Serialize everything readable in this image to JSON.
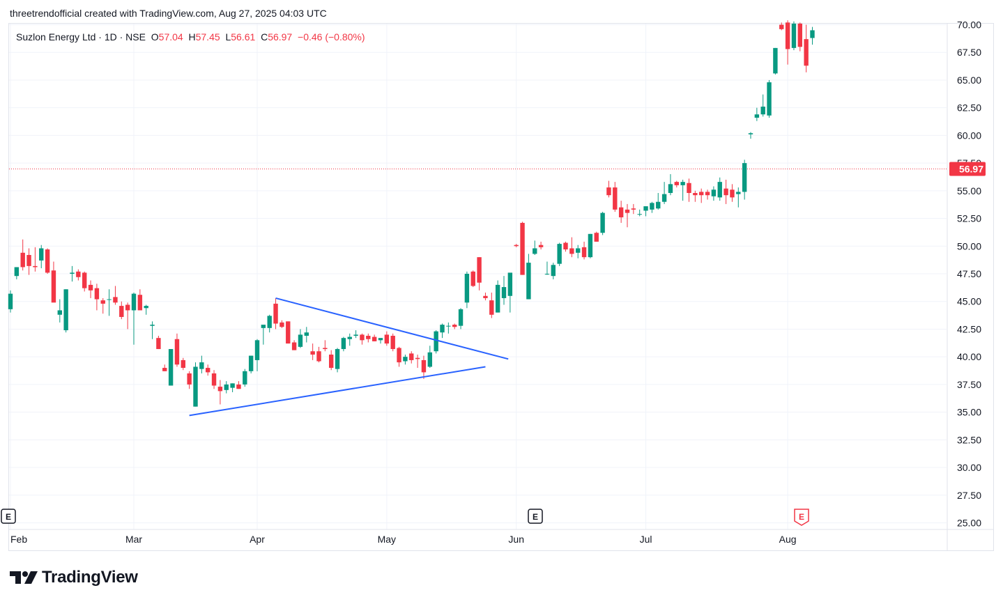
{
  "header": {
    "credit": "threetrendofficial created with TradingView.com, Aug 27, 2025 04:03 UTC"
  },
  "legend": {
    "symbol": "Suzlon Energy Ltd · 1D · NSE",
    "o_label": "O",
    "o_value": "57.04",
    "h_label": "H",
    "h_value": "57.45",
    "l_label": "L",
    "l_value": "56.61",
    "c_label": "C",
    "c_value": "56.97",
    "change": "−0.46 (−0.80%)"
  },
  "price_tag": "56.97",
  "earnings_marker": "E",
  "logo_text": "TradingView",
  "colors": {
    "up": "#089981",
    "down": "#f23645",
    "trendline": "#2962ff",
    "grid": "#f0f3fa",
    "axis_text": "#131722"
  },
  "chart_data": {
    "type": "candlestick",
    "ylim": [
      25,
      70
    ],
    "y_ticks": [
      "25.00",
      "27.50",
      "30.00",
      "32.50",
      "35.00",
      "37.50",
      "40.00",
      "42.50",
      "45.00",
      "47.50",
      "50.00",
      "52.50",
      "55.00",
      "57.50",
      "60.00",
      "62.50",
      "65.00",
      "67.50",
      "70.00"
    ],
    "x_ticks": [
      "Feb",
      "Mar",
      "Apr",
      "May",
      "Jun",
      "Jul",
      "Aug"
    ],
    "last_price": 56.97,
    "ohlc": [
      [
        "Feb 3",
        44.3,
        46.0,
        44.0,
        45.7
      ],
      [
        "Feb 4",
        47.3,
        48.1,
        47.0,
        48.1
      ],
      [
        "Feb 5",
        49.4,
        50.6,
        47.8,
        48.1
      ],
      [
        "Feb 6",
        49.2,
        49.8,
        47.4,
        48.2
      ],
      [
        "Feb 7",
        48.2,
        49.9,
        47.7,
        48.1
      ],
      [
        "Feb 10",
        48.7,
        50.1,
        48.0,
        49.8
      ],
      [
        "Feb 11",
        49.7,
        49.8,
        47.5,
        47.6
      ],
      [
        "Feb 12",
        47.8,
        48.6,
        45.0,
        44.9
      ],
      [
        "Feb 13",
        43.8,
        45.2,
        43.1,
        44.2
      ],
      [
        "Feb 14",
        42.4,
        46.1,
        42.2,
        46.1
      ],
      [
        "Feb 17",
        47.5,
        48.2,
        46.8,
        47.6
      ],
      [
        "Feb 18",
        47.7,
        47.9,
        46.9,
        47.2
      ],
      [
        "Feb 19",
        47.6,
        47.7,
        45.9,
        46.2
      ],
      [
        "Feb 20",
        46.5,
        46.9,
        45.3,
        46.0
      ],
      [
        "Feb 21",
        46.2,
        46.6,
        44.2,
        45.2
      ],
      [
        "Feb 24",
        45.1,
        45.3,
        43.9,
        44.8
      ],
      [
        "Feb 25",
        45.2,
        46.1,
        43.7,
        45.2
      ],
      [
        "Feb 26",
        45.4,
        46.4,
        44.7,
        44.9
      ],
      [
        "Feb 27",
        44.6,
        45.0,
        43.4,
        43.6
      ],
      [
        "Feb 28",
        44.7,
        44.9,
        42.5,
        44.2
      ],
      [
        "Mar 3",
        44.2,
        45.8,
        41.1,
        45.7
      ],
      [
        "Mar 4",
        45.6,
        46.1,
        44.3,
        44.2
      ],
      [
        "Mar 5",
        44.4,
        44.7,
        43.8,
        44.6
      ],
      [
        "Mar 6",
        42.8,
        43.2,
        41.6,
        42.9
      ],
      [
        "Mar 7",
        41.7,
        41.9,
        40.7,
        40.7
      ],
      [
        "Mar 10",
        39.0,
        39.3,
        38.7,
        38.7
      ],
      [
        "Mar 11",
        37.4,
        40.7,
        37.4,
        40.7
      ],
      [
        "Mar 12",
        41.6,
        42.1,
        39.1,
        39.3
      ],
      [
        "Mar 13",
        39.7,
        39.9,
        38.8,
        39.0
      ],
      [
        "Mar 14",
        38.5,
        38.7,
        37.1,
        37.5
      ],
      [
        "Mar 17",
        35.5,
        39.5,
        35.5,
        39.1
      ],
      [
        "Mar 18",
        38.9,
        40.1,
        38.5,
        39.5
      ],
      [
        "Mar 19",
        39.0,
        39.3,
        38.3,
        38.6
      ],
      [
        "Mar 20",
        38.5,
        38.8,
        37.1,
        37.4
      ],
      [
        "Mar 21",
        37.3,
        37.9,
        35.7,
        36.9
      ],
      [
        "Mar 24",
        37.0,
        37.8,
        36.7,
        37.5
      ],
      [
        "Mar 25",
        37.2,
        37.6,
        36.8,
        37.6
      ],
      [
        "Mar 26",
        37.5,
        37.8,
        37.1,
        37.1
      ],
      [
        "Mar 27",
        37.5,
        38.9,
        37.3,
        38.7
      ],
      [
        "Mar 28",
        38.7,
        40.1,
        38.5,
        40.1
      ],
      [
        "Apr 1",
        39.7,
        41.6,
        38.7,
        41.5
      ],
      [
        "Apr 2",
        42.6,
        42.7,
        41.1,
        42.9
      ],
      [
        "Apr 3",
        42.6,
        43.8,
        42.2,
        43.7
      ],
      [
        "Apr 4",
        44.8,
        45.3,
        42.5,
        43.0
      ],
      [
        "Apr 7",
        43.1,
        43.3,
        42.6,
        42.7
      ],
      [
        "Apr 8",
        43.2,
        43.2,
        41.2,
        41.2
      ],
      [
        "Apr 9",
        41.3,
        41.5,
        40.6,
        40.6
      ],
      [
        "Apr 10",
        40.9,
        42.5,
        40.8,
        42.0
      ],
      [
        "Apr 11",
        41.9,
        42.7,
        41.3,
        42.2
      ],
      [
        "Apr 14",
        40.5,
        41.2,
        39.7,
        40.2
      ],
      [
        "Apr 15",
        40.5,
        40.9,
        39.5,
        39.6
      ],
      [
        "Apr 16",
        40.8,
        41.5,
        40.5,
        40.7
      ],
      [
        "Apr 17",
        40.2,
        40.6,
        38.8,
        39.0
      ],
      [
        "Apr 21",
        38.9,
        40.8,
        38.6,
        40.7
      ],
      [
        "Apr 22",
        40.7,
        41.8,
        40.5,
        41.7
      ],
      [
        "Apr 23",
        41.6,
        42.1,
        41.0,
        41.8
      ],
      [
        "Apr 24",
        41.9,
        42.4,
        41.7,
        42.0
      ],
      [
        "Apr 25",
        42.0,
        42.1,
        41.1,
        41.5
      ],
      [
        "Apr 28",
        41.9,
        42.1,
        41.3,
        41.6
      ],
      [
        "Apr 29",
        41.8,
        42.0,
        41.4,
        41.4
      ],
      [
        "Apr 30",
        41.5,
        41.6,
        41.2,
        41.7
      ],
      [
        "May 2",
        42.0,
        42.3,
        41.0,
        41.2
      ],
      [
        "May 5",
        41.9,
        42.1,
        40.5,
        40.7
      ],
      [
        "May 6",
        40.8,
        40.9,
        39.1,
        39.5
      ],
      [
        "May 7",
        39.6,
        40.2,
        39.3,
        40.0
      ],
      [
        "May 8",
        40.3,
        40.5,
        39.4,
        39.7
      ],
      [
        "May 9",
        39.9,
        40.2,
        39.0,
        39.8
      ],
      [
        "May 12",
        39.7,
        40.1,
        38.0,
        38.6
      ],
      [
        "May 13",
        39.1,
        41.0,
        39.0,
        40.4
      ],
      [
        "May 14",
        40.5,
        42.4,
        40.3,
        42.3
      ],
      [
        "May 15",
        42.2,
        43.0,
        41.7,
        42.9
      ],
      [
        "May 16",
        42.8,
        43.1,
        42.1,
        42.8
      ],
      [
        "May 19",
        42.9,
        43.0,
        42.5,
        42.7
      ],
      [
        "May 20",
        42.8,
        44.4,
        42.5,
        44.3
      ],
      [
        "May 21",
        44.9,
        47.7,
        44.4,
        47.5
      ],
      [
        "May 22",
        47.7,
        47.8,
        46.3,
        46.4
      ],
      [
        "May 23",
        49.0,
        49.0,
        46.0,
        46.7
      ],
      [
        "May 26",
        45.5,
        45.8,
        45.1,
        45.3
      ],
      [
        "May 27",
        45.1,
        45.8,
        43.5,
        43.8
      ],
      [
        "May 28",
        44.0,
        46.9,
        44.0,
        46.5
      ],
      [
        "May 29",
        45.3,
        47.3,
        44.7,
        46.3
      ],
      [
        "May 30",
        45.5,
        47.3,
        44.0,
        47.6
      ],
      [
        "Jun 2",
        50.1,
        50.2,
        49.9,
        50.0
      ],
      [
        "Jun 3",
        52.1,
        52.2,
        47.4,
        47.4
      ],
      [
        "Jun 4",
        45.2,
        49.3,
        45.2,
        48.5
      ],
      [
        "Jun 5",
        49.3,
        50.5,
        49.2,
        49.8
      ],
      [
        "Jun 6",
        50.1,
        50.4,
        49.7,
        49.9
      ],
      [
        "Jun 9",
        47.5,
        48.6,
        47.4,
        47.5
      ],
      [
        "Jun 10",
        47.3,
        48.5,
        47.0,
        48.3
      ],
      [
        "Jun 11",
        48.4,
        50.3,
        48.2,
        50.2
      ],
      [
        "Jun 12",
        50.3,
        50.4,
        49.5,
        49.7
      ],
      [
        "Jun 13",
        49.8,
        50.8,
        49.0,
        49.3
      ],
      [
        "Jun 16",
        49.4,
        50.1,
        48.9,
        49.8
      ],
      [
        "Jun 17",
        49.9,
        50.4,
        48.8,
        49.0
      ],
      [
        "Jun 18",
        49.0,
        51.1,
        48.9,
        51.1
      ],
      [
        "Jun 19",
        51.2,
        51.3,
        50.4,
        50.4
      ],
      [
        "Jun 20",
        51.2,
        53.1,
        51.0,
        53.0
      ],
      [
        "Jun 23",
        55.3,
        55.9,
        54.4,
        54.6
      ],
      [
        "Jun 24",
        55.3,
        55.8,
        53.1,
        53.3
      ],
      [
        "Jun 25",
        53.5,
        54.1,
        52.1,
        52.6
      ],
      [
        "Jun 26",
        53.3,
        53.8,
        51.7,
        53.0
      ],
      [
        "Jun 27",
        53.4,
        53.8,
        52.9,
        53.3
      ],
      [
        "Jun 30",
        52.9,
        53.3,
        52.7,
        52.9
      ],
      [
        "Jul 1",
        53.2,
        53.6,
        52.7,
        53.6
      ],
      [
        "Jul 2",
        53.3,
        54.0,
        53.0,
        53.9
      ],
      [
        "Jul 3",
        53.4,
        54.8,
        53.3,
        54.0
      ],
      [
        "Jul 4",
        54.0,
        55.8,
        53.8,
        54.7
      ],
      [
        "Jul 7",
        54.8,
        56.5,
        54.6,
        55.6
      ],
      [
        "Jul 8",
        55.8,
        55.9,
        55.3,
        55.5
      ],
      [
        "Jul 9",
        55.5,
        56.0,
        54.1,
        55.8
      ],
      [
        "Jul 10",
        55.7,
        56.1,
        54.0,
        54.8
      ],
      [
        "Jul 11",
        54.8,
        55.0,
        54.0,
        54.6
      ],
      [
        "Jul 14",
        54.9,
        55.2,
        53.9,
        54.6
      ],
      [
        "Jul 15",
        54.9,
        55.1,
        54.2,
        54.6
      ],
      [
        "Jul 16",
        54.5,
        55.4,
        54.1,
        55.1
      ],
      [
        "Jul 17",
        54.4,
        56.2,
        54.1,
        55.8
      ],
      [
        "Jul 18",
        55.2,
        56.0,
        53.8,
        54.6
      ],
      [
        "Jul 21",
        55.1,
        55.6,
        54.0,
        54.4
      ],
      [
        "Jul 22",
        54.7,
        55.3,
        53.5,
        54.9
      ],
      [
        "Jul 23",
        54.9,
        57.8,
        54.2,
        57.5
      ],
      [
        "Jul 24",
        60.1,
        60.3,
        59.7,
        60.2
      ],
      [
        "Jul 25",
        61.6,
        62.5,
        61.3,
        61.9
      ],
      [
        "Jul 28",
        61.9,
        63.7,
        61.7,
        62.6
      ],
      [
        "Jul 29",
        61.8,
        65.0,
        61.6,
        64.8
      ],
      [
        "Jul 30",
        65.6,
        67.9,
        65.5,
        67.9
      ],
      [
        "Jul 31",
        70.0,
        70.2,
        69.5,
        69.6
      ],
      [
        "Aug 1",
        70.2,
        70.4,
        66.4,
        67.8
      ],
      [
        "Aug 4",
        67.9,
        70.3,
        67.7,
        70.1
      ],
      [
        "Aug 5",
        70.1,
        70.2,
        67.6,
        68.0
      ],
      [
        "Aug 6",
        68.7,
        70.0,
        65.7,
        66.3
      ],
      [
        "Aug 7",
        68.8,
        69.8,
        68.2,
        69.5
      ]
    ],
    "trendlines": [
      {
        "name": "upper",
        "from": [
          "Apr 4",
          45.3
        ],
        "to": [
          "May 25",
          39.8
        ]
      },
      {
        "name": "lower",
        "from": [
          "Mar 14",
          34.7
        ],
        "to": [
          "May 26",
          39.1
        ]
      }
    ]
  }
}
